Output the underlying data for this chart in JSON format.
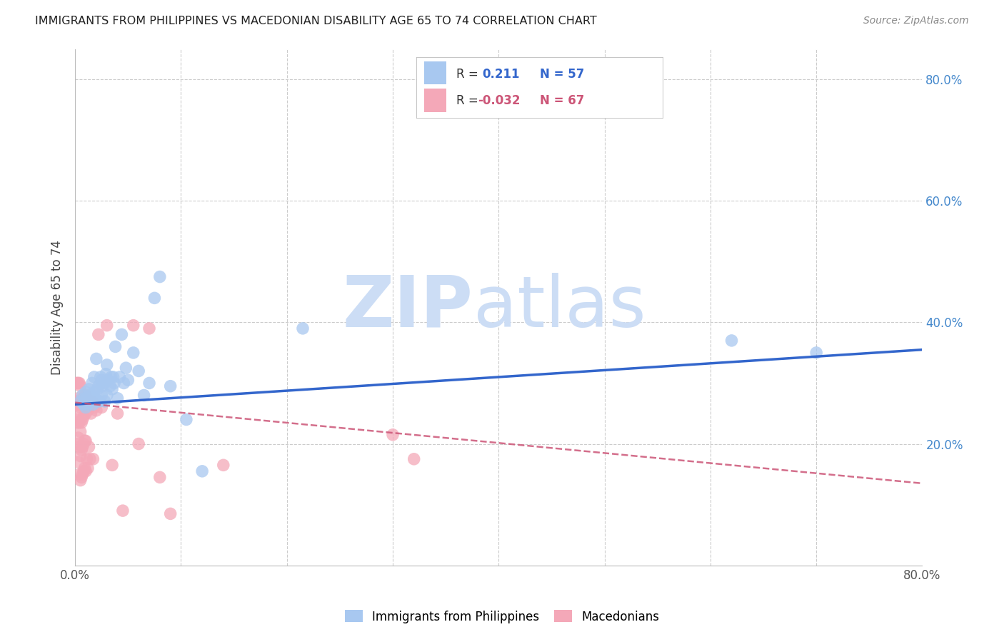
{
  "title": "IMMIGRANTS FROM PHILIPPINES VS MACEDONIAN DISABILITY AGE 65 TO 74 CORRELATION CHART",
  "source": "Source: ZipAtlas.com",
  "ylabel": "Disability Age 65 to 74",
  "xlim": [
    0,
    0.8
  ],
  "ylim": [
    0,
    0.85
  ],
  "blue_R": 0.211,
  "blue_N": 57,
  "pink_R": -0.032,
  "pink_N": 67,
  "blue_color": "#a8c8f0",
  "pink_color": "#f4a8b8",
  "blue_line_color": "#3366cc",
  "pink_line_color": "#cc5577",
  "background_color": "#ffffff",
  "grid_color": "#cccccc",
  "watermark_color": "#ccddf5",
  "blue_line_x0": 0.0,
  "blue_line_y0": 0.265,
  "blue_line_x1": 0.8,
  "blue_line_y1": 0.355,
  "pink_line_x0": 0.0,
  "pink_line_y0": 0.268,
  "pink_line_x1": 0.8,
  "pink_line_y1": 0.135,
  "blue_scatter_x": [
    0.005,
    0.007,
    0.008,
    0.009,
    0.01,
    0.01,
    0.01,
    0.011,
    0.012,
    0.013,
    0.014,
    0.015,
    0.016,
    0.016,
    0.017,
    0.018,
    0.018,
    0.019,
    0.02,
    0.02,
    0.021,
    0.022,
    0.023,
    0.024,
    0.025,
    0.025,
    0.026,
    0.027,
    0.028,
    0.029,
    0.03,
    0.03,
    0.031,
    0.033,
    0.034,
    0.035,
    0.036,
    0.037,
    0.038,
    0.04,
    0.042,
    0.044,
    0.046,
    0.048,
    0.05,
    0.055,
    0.06,
    0.065,
    0.07,
    0.075,
    0.08,
    0.09,
    0.105,
    0.12,
    0.215,
    0.62,
    0.7
  ],
  "blue_scatter_y": [
    0.27,
    0.28,
    0.265,
    0.275,
    0.26,
    0.27,
    0.285,
    0.275,
    0.265,
    0.29,
    0.275,
    0.28,
    0.27,
    0.3,
    0.265,
    0.285,
    0.31,
    0.275,
    0.27,
    0.34,
    0.29,
    0.295,
    0.27,
    0.31,
    0.28,
    0.305,
    0.295,
    0.3,
    0.27,
    0.315,
    0.28,
    0.33,
    0.305,
    0.295,
    0.31,
    0.29,
    0.31,
    0.3,
    0.36,
    0.275,
    0.31,
    0.38,
    0.3,
    0.325,
    0.305,
    0.35,
    0.32,
    0.28,
    0.3,
    0.44,
    0.475,
    0.295,
    0.24,
    0.155,
    0.39,
    0.37,
    0.35
  ],
  "pink_scatter_x": [
    0.001,
    0.001,
    0.001,
    0.002,
    0.002,
    0.002,
    0.002,
    0.003,
    0.003,
    0.003,
    0.003,
    0.003,
    0.004,
    0.004,
    0.004,
    0.004,
    0.004,
    0.005,
    0.005,
    0.005,
    0.005,
    0.005,
    0.006,
    0.006,
    0.006,
    0.006,
    0.007,
    0.007,
    0.007,
    0.007,
    0.008,
    0.008,
    0.008,
    0.008,
    0.009,
    0.009,
    0.009,
    0.01,
    0.01,
    0.01,
    0.01,
    0.011,
    0.011,
    0.012,
    0.012,
    0.013,
    0.013,
    0.014,
    0.015,
    0.016,
    0.017,
    0.018,
    0.02,
    0.022,
    0.025,
    0.03,
    0.035,
    0.04,
    0.045,
    0.055,
    0.06,
    0.07,
    0.08,
    0.09,
    0.14,
    0.3,
    0.32
  ],
  "pink_scatter_y": [
    0.24,
    0.27,
    0.3,
    0.2,
    0.235,
    0.265,
    0.3,
    0.17,
    0.21,
    0.25,
    0.275,
    0.3,
    0.15,
    0.195,
    0.235,
    0.265,
    0.3,
    0.14,
    0.18,
    0.22,
    0.26,
    0.295,
    0.145,
    0.19,
    0.235,
    0.27,
    0.15,
    0.195,
    0.24,
    0.275,
    0.155,
    0.2,
    0.245,
    0.275,
    0.16,
    0.205,
    0.265,
    0.155,
    0.205,
    0.25,
    0.28,
    0.175,
    0.265,
    0.16,
    0.255,
    0.195,
    0.265,
    0.175,
    0.25,
    0.27,
    0.175,
    0.26,
    0.255,
    0.38,
    0.26,
    0.395,
    0.165,
    0.25,
    0.09,
    0.395,
    0.2,
    0.39,
    0.145,
    0.085,
    0.165,
    0.215,
    0.175
  ]
}
